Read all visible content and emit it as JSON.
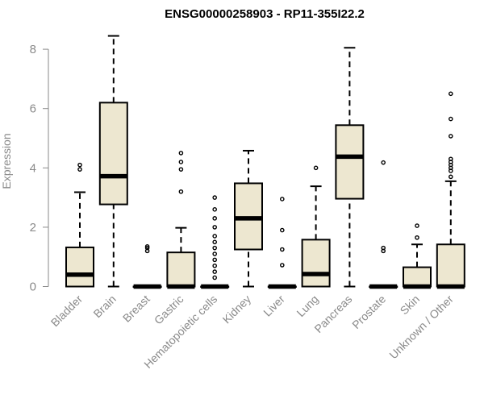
{
  "chart_data": {
    "type": "boxplot",
    "title": "ENSG00000258903 - RP11-355I22.2",
    "xlabel": "",
    "ylabel": "Expression",
    "ylim": [
      0,
      8.5
    ],
    "yticks": [
      0,
      2,
      4,
      6,
      8
    ],
    "box_color": "#ede7d0",
    "median_color": "#000000",
    "categories": [
      "Bladder",
      "Brain",
      "Breast",
      "Gastric",
      "Hematopoietic cells",
      "Kidney",
      "Liver",
      "Lung",
      "Pancreas",
      "Prostate",
      "Skin",
      "Unknown / Other"
    ],
    "boxes": [
      {
        "name": "Bladder",
        "min": 0,
        "q1": 0,
        "median": 0.4,
        "q3": 1.32,
        "max": 3.18,
        "outliers": [
          3.95,
          4.1
        ]
      },
      {
        "name": "Brain",
        "min": 0,
        "q1": 2.77,
        "median": 3.72,
        "q3": 6.2,
        "max": 8.45,
        "outliers": []
      },
      {
        "name": "Breast",
        "min": 0,
        "q1": 0,
        "median": 0,
        "q3": 0,
        "max": 0,
        "outliers": [
          1.2,
          1.3,
          1.35
        ]
      },
      {
        "name": "Gastric",
        "min": 0,
        "q1": 0,
        "median": 0,
        "q3": 1.15,
        "max": 1.98,
        "outliers": [
          3.2,
          3.95,
          4.2,
          4.5
        ]
      },
      {
        "name": "Hematopoietic cells",
        "min": 0,
        "q1": 0,
        "median": 0,
        "q3": 0,
        "max": 0,
        "outliers": [
          0.3,
          0.5,
          0.7,
          0.9,
          1.1,
          1.3,
          1.5,
          1.7,
          2.0,
          2.3,
          2.6,
          3.0
        ]
      },
      {
        "name": "Kidney",
        "min": 0,
        "q1": 1.25,
        "median": 2.3,
        "q3": 3.48,
        "max": 4.58,
        "outliers": []
      },
      {
        "name": "Liver",
        "min": 0,
        "q1": 0,
        "median": 0,
        "q3": 0,
        "max": 0,
        "outliers": [
          0.72,
          1.25,
          1.9,
          2.95
        ]
      },
      {
        "name": "Lung",
        "min": 0,
        "q1": 0,
        "median": 0.42,
        "q3": 1.58,
        "max": 3.38,
        "outliers": [
          4.0
        ]
      },
      {
        "name": "Pancreas",
        "min": 0,
        "q1": 2.96,
        "median": 4.38,
        "q3": 5.44,
        "max": 8.05,
        "outliers": []
      },
      {
        "name": "Prostate",
        "min": 0,
        "q1": 0,
        "median": 0,
        "q3": 0,
        "max": 0,
        "outliers": [
          1.2,
          1.3,
          4.18
        ]
      },
      {
        "name": "Skin",
        "min": 0,
        "q1": 0,
        "median": 0,
        "q3": 0.65,
        "max": 1.42,
        "outliers": [
          1.65,
          2.05
        ]
      },
      {
        "name": "Unknown / Other",
        "min": 0,
        "q1": 0,
        "median": 0,
        "q3": 1.42,
        "max": 3.55,
        "outliers": [
          3.7,
          3.9,
          4.0,
          4.1,
          4.2,
          4.3,
          5.07,
          5.65,
          6.5
        ]
      }
    ]
  }
}
